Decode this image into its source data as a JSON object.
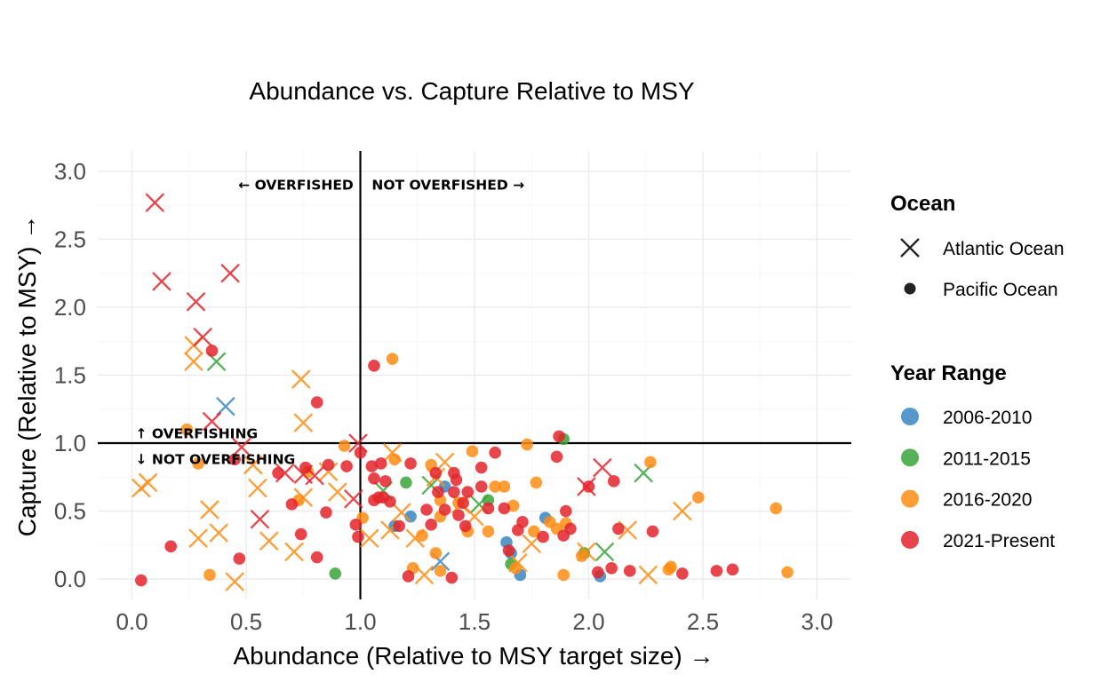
{
  "chart_data": {
    "type": "scatter",
    "title": "Abundance vs. Capture Relative to MSY",
    "xlabel": "Abundance (Relative to MSY target size) →",
    "ylabel": "Capture (Relative to MSY) →",
    "xlim": [
      -0.15,
      3.15
    ],
    "ylim": [
      -0.15,
      3.15
    ],
    "x_ticks": [
      "0.0",
      "0.5",
      "1.0",
      "1.5",
      "2.0",
      "2.5",
      "3.0"
    ],
    "y_ticks": [
      "0.0",
      "0.5",
      "1.0",
      "1.5",
      "2.0",
      "2.5",
      "3.0"
    ],
    "grid": true,
    "reference_lines": {
      "x": 1.0,
      "y": 1.0
    },
    "annotations": [
      {
        "text": "← OVERFISHED",
        "x": 0.97,
        "y": 2.9,
        "align": "end"
      },
      {
        "text": "NOT OVERFISHED →",
        "x": 1.05,
        "y": 2.9,
        "align": "start"
      },
      {
        "text": "↑ OVERFISHING",
        "x": 0.0,
        "y": 1.07,
        "align": "start"
      },
      {
        "text": "↓ NOT OVERFISHING",
        "x": 0.0,
        "y": 0.88,
        "align": "start"
      }
    ],
    "legend": {
      "position": "right",
      "ocean_title": "Ocean",
      "ocean": [
        {
          "label": "Atlantic Ocean",
          "shape": "cross"
        },
        {
          "label": "Pacific Ocean",
          "shape": "circle"
        }
      ],
      "year_title": "Year Range",
      "years": [
        {
          "label": "2006-2010",
          "color": "#3a86c2"
        },
        {
          "label": "2011-2015",
          "color": "#3aa43a"
        },
        {
          "label": "2016-2020",
          "color": "#ff8c14"
        },
        {
          "label": "2021-Present",
          "color": "#e3242b"
        }
      ]
    },
    "series": [
      {
        "year": "2006-2010",
        "shape": "circle",
        "points": [
          [
            1.22,
            0.46
          ],
          [
            1.37,
            0.68
          ],
          [
            1.15,
            0.39
          ],
          [
            1.64,
            0.27
          ],
          [
            1.66,
            0.19
          ],
          [
            1.7,
            0.03
          ],
          [
            1.81,
            0.45
          ],
          [
            2.05,
            0.02
          ]
        ]
      },
      {
        "year": "2006-2010",
        "shape": "cross",
        "points": [
          [
            0.41,
            1.27
          ],
          [
            1.35,
            0.13
          ]
        ]
      },
      {
        "year": "2011-2015",
        "shape": "circle",
        "points": [
          [
            0.89,
            0.04
          ],
          [
            1.2,
            0.71
          ],
          [
            1.56,
            0.58
          ],
          [
            1.66,
            0.11
          ],
          [
            1.89,
            1.03
          ],
          [
            1.98,
            0.19
          ]
        ]
      },
      {
        "year": "2011-2015",
        "shape": "cross",
        "points": [
          [
            0.37,
            1.6
          ],
          [
            1.1,
            0.65
          ],
          [
            1.31,
            0.69
          ],
          [
            1.52,
            0.55
          ],
          [
            2.07,
            0.2
          ],
          [
            2.24,
            0.78
          ]
        ]
      },
      {
        "year": "2016-2020",
        "shape": "circle",
        "points": [
          [
            1.14,
            1.62
          ],
          [
            0.93,
            0.98
          ],
          [
            1.01,
            0.45
          ],
          [
            1.15,
            0.88
          ],
          [
            1.27,
            0.32
          ],
          [
            1.23,
            0.08
          ],
          [
            1.35,
            0.06
          ],
          [
            1.33,
            0.19
          ],
          [
            1.35,
            0.46
          ],
          [
            1.49,
            0.94
          ],
          [
            1.47,
            0.35
          ],
          [
            1.43,
            0.56
          ],
          [
            1.56,
            0.35
          ],
          [
            1.63,
            0.68
          ],
          [
            1.67,
            0.54
          ],
          [
            1.68,
            0.08
          ],
          [
            1.73,
            0.99
          ],
          [
            1.76,
            0.35
          ],
          [
            1.77,
            0.71
          ],
          [
            1.83,
            0.42
          ],
          [
            1.86,
            0.37
          ],
          [
            1.89,
            0.03
          ],
          [
            1.97,
            0.17
          ],
          [
            2.27,
            0.86
          ],
          [
            2.35,
            0.07
          ],
          [
            2.36,
            0.09
          ],
          [
            2.48,
            0.6
          ],
          [
            2.82,
            0.52
          ],
          [
            2.87,
            0.05
          ],
          [
            0.34,
            0.03
          ],
          [
            0.24,
            1.1
          ],
          [
            0.29,
            0.85
          ],
          [
            0.73,
            0.58
          ],
          [
            0.77,
            0.79
          ],
          [
            1.31,
            0.84
          ],
          [
            1.35,
            0.58
          ],
          [
            1.9,
            0.41
          ],
          [
            1.59,
            0.68
          ]
        ]
      },
      {
        "year": "2016-2020",
        "shape": "cross",
        "points": [
          [
            0.27,
            1.72
          ],
          [
            0.27,
            1.6
          ],
          [
            0.74,
            1.47
          ],
          [
            0.75,
            1.15
          ],
          [
            0.04,
            0.67
          ],
          [
            0.07,
            0.71
          ],
          [
            0.29,
            0.3
          ],
          [
            0.34,
            0.51
          ],
          [
            0.38,
            0.34
          ],
          [
            0.45,
            -0.02
          ],
          [
            0.53,
            0.84
          ],
          [
            0.55,
            0.67
          ],
          [
            0.6,
            0.28
          ],
          [
            0.75,
            0.6
          ],
          [
            0.71,
            0.2
          ],
          [
            0.86,
            0.79
          ],
          [
            0.9,
            0.64
          ],
          [
            1.04,
            0.3
          ],
          [
            1.14,
            0.93
          ],
          [
            1.13,
            0.36
          ],
          [
            1.18,
            0.49
          ],
          [
            1.24,
            0.3
          ],
          [
            1.28,
            0.03
          ],
          [
            1.33,
            0.75
          ],
          [
            1.44,
            0.55
          ],
          [
            1.5,
            0.46
          ],
          [
            1.69,
            0.12
          ],
          [
            1.75,
            0.26
          ],
          [
            1.99,
            0.2
          ],
          [
            2.17,
            0.36
          ],
          [
            2.26,
            0.03
          ],
          [
            2.41,
            0.5
          ],
          [
            1.37,
            0.86
          ]
        ]
      },
      {
        "year": "2021-Present",
        "shape": "circle",
        "points": [
          [
            0.04,
            -0.01
          ],
          [
            0.17,
            0.24
          ],
          [
            0.35,
            1.68
          ],
          [
            0.45,
            0.88
          ],
          [
            0.47,
            0.15
          ],
          [
            0.64,
            0.78
          ],
          [
            0.7,
            0.55
          ],
          [
            0.74,
            0.33
          ],
          [
            0.76,
            0.82
          ],
          [
            0.81,
            1.3
          ],
          [
            0.81,
            0.16
          ],
          [
            0.85,
            0.49
          ],
          [
            0.86,
            0.84
          ],
          [
            0.94,
            0.83
          ],
          [
            0.98,
            0.4
          ],
          [
            0.99,
            0.31
          ],
          [
            1.0,
            0.93
          ],
          [
            1.05,
            0.83
          ],
          [
            1.06,
            0.58
          ],
          [
            1.06,
            0.74
          ],
          [
            1.06,
            1.57
          ],
          [
            1.08,
            0.6
          ],
          [
            1.09,
            0.85
          ],
          [
            1.1,
            0.6
          ],
          [
            1.11,
            0.72
          ],
          [
            1.13,
            0.57
          ],
          [
            1.17,
            0.39
          ],
          [
            1.21,
            0.02
          ],
          [
            1.22,
            0.85
          ],
          [
            1.29,
            0.51
          ],
          [
            1.31,
            0.4
          ],
          [
            1.33,
            0.78
          ],
          [
            1.34,
            0.64
          ],
          [
            1.37,
            0.51
          ],
          [
            1.4,
            0.01
          ],
          [
            1.41,
            0.78
          ],
          [
            1.41,
            0.64
          ],
          [
            1.43,
            0.47
          ],
          [
            1.45,
            0.56
          ],
          [
            1.46,
            0.39
          ],
          [
            1.47,
            0.64
          ],
          [
            1.53,
            0.82
          ],
          [
            1.53,
            0.68
          ],
          [
            1.56,
            0.52
          ],
          [
            1.59,
            0.93
          ],
          [
            1.63,
            0.52
          ],
          [
            1.65,
            0.21
          ],
          [
            1.69,
            0.36
          ],
          [
            1.71,
            0.42
          ],
          [
            1.8,
            0.31
          ],
          [
            1.86,
            0.9
          ],
          [
            1.87,
            1.05
          ],
          [
            1.89,
            0.32
          ],
          [
            1.9,
            0.5
          ],
          [
            1.92,
            0.37
          ],
          [
            2.0,
            0.68
          ],
          [
            2.04,
            0.05
          ],
          [
            2.1,
            0.08
          ],
          [
            2.11,
            0.72
          ],
          [
            2.13,
            0.37
          ],
          [
            2.18,
            0.06
          ],
          [
            2.28,
            0.35
          ],
          [
            2.41,
            0.04
          ],
          [
            2.56,
            0.06
          ],
          [
            2.63,
            0.07
          ],
          [
            1.42,
            0.73
          ]
        ]
      },
      {
        "year": "2021-Present",
        "shape": "cross",
        "points": [
          [
            0.1,
            2.77
          ],
          [
            0.13,
            2.19
          ],
          [
            0.28,
            2.04
          ],
          [
            0.31,
            1.78
          ],
          [
            0.43,
            2.25
          ],
          [
            0.35,
            1.16
          ],
          [
            0.48,
            0.97
          ],
          [
            0.56,
            0.44
          ],
          [
            0.67,
            0.78
          ],
          [
            0.75,
            0.77
          ],
          [
            0.8,
            0.76
          ],
          [
            0.97,
            0.59
          ],
          [
            0.99,
            1.0
          ],
          [
            1.99,
            0.68
          ],
          [
            2.06,
            0.82
          ]
        ]
      }
    ]
  }
}
